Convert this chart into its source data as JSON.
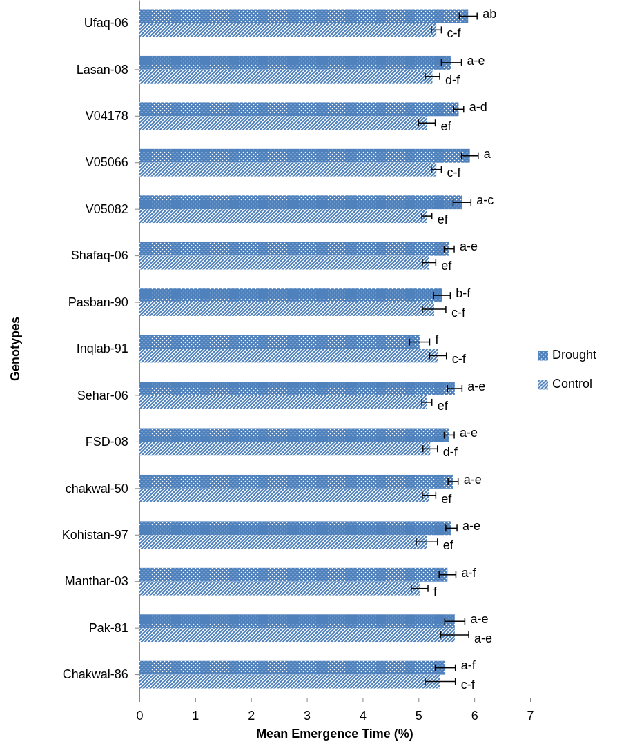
{
  "chart_data": {
    "type": "bar",
    "orientation": "horizontal",
    "xlabel": "Mean Emergence Time (%)",
    "ylabel": "Genotypes",
    "categories": [
      "Ufaq-06",
      "Lasan-08",
      "V04178",
      "V05066",
      "V05082",
      "Shafaq-06",
      "Pasban-90",
      "Inqlab-91",
      "Sehar-06",
      "FSD-08",
      "chakwal-50",
      "Kohistan-97",
      "Manthar-03",
      "Pak-81",
      "Chakwal-86"
    ],
    "xlim": [
      0,
      7
    ],
    "xticks": [
      0,
      1,
      2,
      3,
      4,
      5,
      6,
      7
    ],
    "grid": false,
    "legend": "right",
    "series": [
      {
        "name": "Drought",
        "color": "#4f81bd",
        "values": [
          5.89,
          5.59,
          5.72,
          5.92,
          5.78,
          5.55,
          5.42,
          5.02,
          5.65,
          5.55,
          5.62,
          5.59,
          5.52,
          5.65,
          5.48
        ],
        "errors": [
          0.16,
          0.18,
          0.09,
          0.15,
          0.16,
          0.09,
          0.15,
          0.18,
          0.13,
          0.09,
          0.09,
          0.1,
          0.15,
          0.18,
          0.18
        ],
        "value_labels": [
          "ab",
          "a-e",
          "a-d",
          "a",
          "a-c",
          "a-e",
          "b-f",
          "f",
          "a-e",
          "a-e",
          "a-e",
          "a-e",
          "a-f",
          "a-e",
          "a-f"
        ]
      },
      {
        "name": "Control",
        "color": "#4f81bd",
        "values": [
          5.32,
          5.25,
          5.15,
          5.32,
          5.15,
          5.19,
          5.28,
          5.35,
          5.15,
          5.21,
          5.19,
          5.15,
          5.02,
          5.65,
          5.39
        ],
        "errors": [
          0.09,
          0.13,
          0.15,
          0.09,
          0.09,
          0.12,
          0.21,
          0.15,
          0.09,
          0.13,
          0.12,
          0.19,
          0.15,
          0.25,
          0.27
        ],
        "value_labels": [
          "c-f",
          "d-f",
          "ef",
          "c-f",
          "ef",
          "ef",
          "c-f",
          "c-f",
          "ef",
          "d-f",
          "ef",
          "ef",
          "f",
          "a-e",
          "c-f"
        ]
      }
    ]
  }
}
